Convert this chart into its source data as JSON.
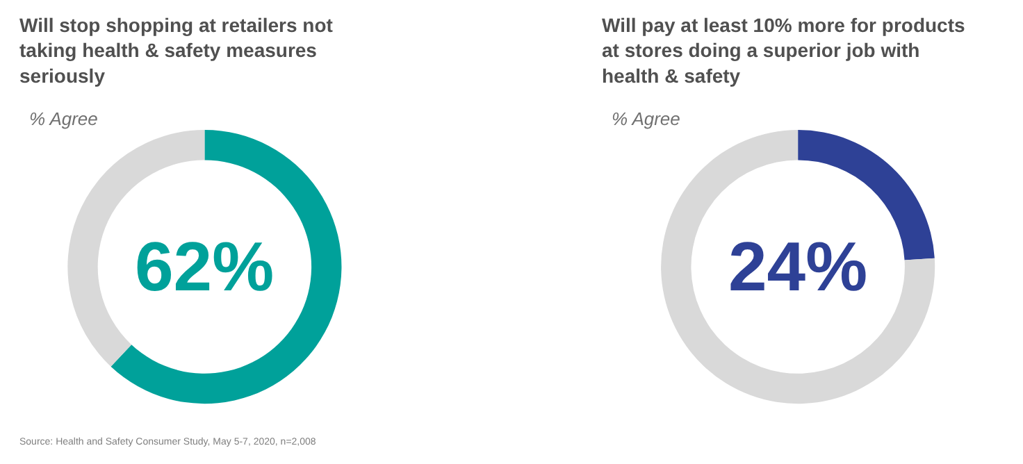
{
  "chart_data": [
    {
      "type": "donut",
      "title": "Will stop shopping at retailers not taking health & safety measures seriously",
      "subtitle": "% Agree",
      "categories": [
        null,
        null
      ],
      "values": [
        62,
        38
      ],
      "colors": [
        "#00a19a",
        "#d9d9d9"
      ],
      "annotations": [
        "62%",
        "Source: Health and Safety Consumer Study, May 5-7, 2020, n=2,008"
      ]
    },
    {
      "type": "donut",
      "title": "Will pay at least 10% more for products at stores doing a superior job with health & safety",
      "subtitle": "% Agree",
      "categories": [
        null,
        null
      ],
      "values": [
        24,
        76
      ],
      "colors": [
        "#2e4196",
        "#d9d9d9"
      ],
      "annotations": [
        "24%"
      ]
    }
  ]
}
